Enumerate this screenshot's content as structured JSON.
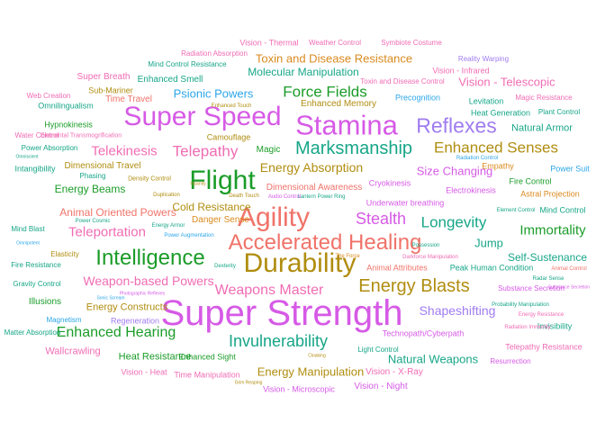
{
  "palette": {
    "green": "#1a9c28",
    "teal": "#17a688",
    "olive": "#b08d10",
    "orange": "#d98a1e",
    "salmon": "#f0736a",
    "pink": "#f06cb4",
    "magenta": "#d65ae6",
    "purple": "#a07cf0",
    "blue": "#2ca6e8",
    "cyan": "#1cb4d8"
  },
  "words": [
    {
      "text": "Super Strength",
      "color": "magenta"
    },
    {
      "text": "Super Speed",
      "color": "magenta"
    },
    {
      "text": "Stamina",
      "color": "magenta"
    },
    {
      "text": "Flight",
      "color": "green"
    },
    {
      "text": "Durability",
      "color": "olive"
    },
    {
      "text": "Agility",
      "color": "salmon"
    },
    {
      "text": "Accelerated Healing",
      "color": "salmon"
    },
    {
      "text": "Reflexes",
      "color": "purple"
    },
    {
      "text": "Intelligence",
      "color": "green"
    },
    {
      "text": "Marksmanship",
      "color": "teal"
    },
    {
      "text": "Energy Blasts",
      "color": "olive"
    },
    {
      "text": "Invulnerability",
      "color": "teal"
    },
    {
      "text": "Weapons Master",
      "color": "pink"
    },
    {
      "text": "Enhanced Senses",
      "color": "olive"
    },
    {
      "text": "Force Fields",
      "color": "green"
    },
    {
      "text": "Telepathy",
      "color": "pink"
    },
    {
      "text": "Longevity",
      "color": "teal"
    },
    {
      "text": "Stealth",
      "color": "magenta"
    },
    {
      "text": "Telekinesis",
      "color": "pink"
    },
    {
      "text": "Shapeshifting",
      "color": "purple"
    },
    {
      "text": "Energy Absorption",
      "color": "olive"
    },
    {
      "text": "Teleportation",
      "color": "pink"
    },
    {
      "text": "Weapon-based Powers",
      "color": "pink"
    },
    {
      "text": "Enhanced Hearing",
      "color": "green"
    },
    {
      "text": "Immortality",
      "color": "green"
    },
    {
      "text": "Toxin and Disease Resistance",
      "color": "orange"
    },
    {
      "text": "Psionic Powers",
      "color": "blue"
    },
    {
      "text": "Energy Manipulation",
      "color": "olive"
    },
    {
      "text": "Size Changing",
      "color": "magenta"
    },
    {
      "text": "Natural Weapons",
      "color": "teal"
    },
    {
      "text": "Molecular Manipulation",
      "color": "teal"
    },
    {
      "text": "Vision - Telescopic",
      "color": "pink"
    },
    {
      "text": "Cold Resistance",
      "color": "olive"
    },
    {
      "text": "Jump",
      "color": "teal"
    },
    {
      "text": "Self-Sustenance",
      "color": "teal"
    },
    {
      "text": "Heat Resistance",
      "color": "green"
    },
    {
      "text": "Energy Beams",
      "color": "green"
    },
    {
      "text": "Animal Oriented Powers",
      "color": "salmon"
    },
    {
      "text": "Energy Constructs",
      "color": "olive"
    },
    {
      "text": "Enhanced Smell",
      "color": "teal"
    },
    {
      "text": "Dimensional Awareness",
      "color": "salmon"
    },
    {
      "text": "Dimensional Travel",
      "color": "olive"
    },
    {
      "text": "Wallcrawling",
      "color": "pink"
    },
    {
      "text": "Natural Armor",
      "color": "teal"
    },
    {
      "text": "Enhanced Memory",
      "color": "olive"
    },
    {
      "text": "Super Breath",
      "color": "pink"
    },
    {
      "text": "Time Travel",
      "color": "salmon"
    },
    {
      "text": "Magic",
      "color": "green"
    },
    {
      "text": "Danger Sense",
      "color": "orange"
    },
    {
      "text": "Illusions",
      "color": "green"
    },
    {
      "text": "Regeneration",
      "color": "purple"
    },
    {
      "text": "Enhanced Sight",
      "color": "green"
    },
    {
      "text": "Vision - X-Ray",
      "color": "pink"
    },
    {
      "text": "Vision - Night",
      "color": "magenta"
    },
    {
      "text": "Vision - Heat",
      "color": "pink"
    },
    {
      "text": "Vision - Thermal",
      "color": "pink"
    },
    {
      "text": "Vision - Infrared",
      "color": "pink"
    },
    {
      "text": "Vision - Microscopic",
      "color": "magenta"
    },
    {
      "text": "Time Manipulation",
      "color": "pink"
    },
    {
      "text": "Telepathy Resistance",
      "color": "pink"
    },
    {
      "text": "Technopath/Cyberpath",
      "color": "magenta"
    },
    {
      "text": "Invisibility",
      "color": "teal"
    },
    {
      "text": "Hypnokinesis",
      "color": "green"
    },
    {
      "text": "Omnilingualism",
      "color": "teal"
    },
    {
      "text": "Levitation",
      "color": "teal"
    },
    {
      "text": "Heat Generation",
      "color": "teal"
    },
    {
      "text": "Fire Control",
      "color": "green"
    },
    {
      "text": "Astral Projection",
      "color": "orange"
    },
    {
      "text": "Power Suit",
      "color": "blue"
    },
    {
      "text": "Empathy",
      "color": "orange"
    },
    {
      "text": "Mind Control",
      "color": "teal"
    },
    {
      "text": "Cryokinesis",
      "color": "magenta"
    },
    {
      "text": "Electrokinesis",
      "color": "magenta"
    },
    {
      "text": "Underwater breathing",
      "color": "magenta"
    },
    {
      "text": "Animal Attributes",
      "color": "salmon"
    },
    {
      "text": "Peak Human Condition",
      "color": "teal"
    },
    {
      "text": "Intangibility",
      "color": "teal"
    },
    {
      "text": "Phasing",
      "color": "teal"
    },
    {
      "text": "Camouflage",
      "color": "olive"
    },
    {
      "text": "Sub-Mariner",
      "color": "olive"
    },
    {
      "text": "Precognition",
      "color": "blue"
    },
    {
      "text": "Mind Blast",
      "color": "teal"
    },
    {
      "text": "Elasticity",
      "color": "olive"
    },
    {
      "text": "Fire Resistance",
      "color": "teal"
    },
    {
      "text": "Gravity Control",
      "color": "teal"
    },
    {
      "text": "Magnetism",
      "color": "blue"
    },
    {
      "text": "Matter Absorption",
      "color": "teal"
    },
    {
      "text": "Light Control",
      "color": "teal"
    },
    {
      "text": "Resurrection",
      "color": "magenta"
    },
    {
      "text": "Substance Secretion",
      "color": "magenta"
    },
    {
      "text": "Web Creation",
      "color": "pink"
    },
    {
      "text": "Water Control",
      "color": "pink"
    },
    {
      "text": "Power Absorption",
      "color": "teal"
    },
    {
      "text": "Mind Control Resistance",
      "color": "teal"
    },
    {
      "text": "Radiation Absorption",
      "color": "pink"
    },
    {
      "text": "Weather Control",
      "color": "pink"
    },
    {
      "text": "Symbiote Costume",
      "color": "pink"
    },
    {
      "text": "Reality Warping",
      "color": "purple"
    },
    {
      "text": "Toxin and Disease Control",
      "color": "pink"
    },
    {
      "text": "Magic Resistance",
      "color": "pink"
    },
    {
      "text": "Plant Control",
      "color": "teal"
    },
    {
      "text": "Elemental Transmogrification",
      "color": "pink"
    },
    {
      "text": "Enhanced Touch",
      "color": "olive"
    },
    {
      "text": "Density Control",
      "color": "olive"
    },
    {
      "text": "Duplication",
      "color": "olive"
    },
    {
      "text": "Radiation Control",
      "color": "blue"
    },
    {
      "text": "Power Augmentation",
      "color": "blue"
    },
    {
      "text": "Lantern Power Ring",
      "color": "teal"
    },
    {
      "text": "Death Touch",
      "color": "olive"
    },
    {
      "text": "Audio Control",
      "color": "magenta"
    },
    {
      "text": "Element Control",
      "color": "teal"
    },
    {
      "text": "Energy Armor",
      "color": "teal"
    },
    {
      "text": "Power Cosmic",
      "color": "teal"
    },
    {
      "text": "The Force",
      "color": "orange"
    },
    {
      "text": "Darkforce Manipulation",
      "color": "pink"
    },
    {
      "text": "Probability Manipulation",
      "color": "teal"
    },
    {
      "text": "Radiation Immunity",
      "color": "pink"
    },
    {
      "text": "Energy Resistance",
      "color": "pink"
    },
    {
      "text": "Possession",
      "color": "teal"
    },
    {
      "text": "Animal Control",
      "color": "salmon"
    },
    {
      "text": "Radar Sense",
      "color": "teal"
    },
    {
      "text": "Photographic Reflexes",
      "color": "magenta"
    },
    {
      "text": "Sonic Scream",
      "color": "blue"
    },
    {
      "text": "Omnipotent",
      "color": "blue"
    },
    {
      "text": "Dexterity",
      "color": "teal"
    },
    {
      "text": "Cloaking",
      "color": "olive"
    },
    {
      "text": "Insanity",
      "color": "olive"
    },
    {
      "text": "Grim Reaping",
      "color": "olive"
    },
    {
      "text": "Omniscient",
      "color": "teal"
    },
    {
      "text": "Substance Secretion",
      "color": "magenta"
    }
  ]
}
